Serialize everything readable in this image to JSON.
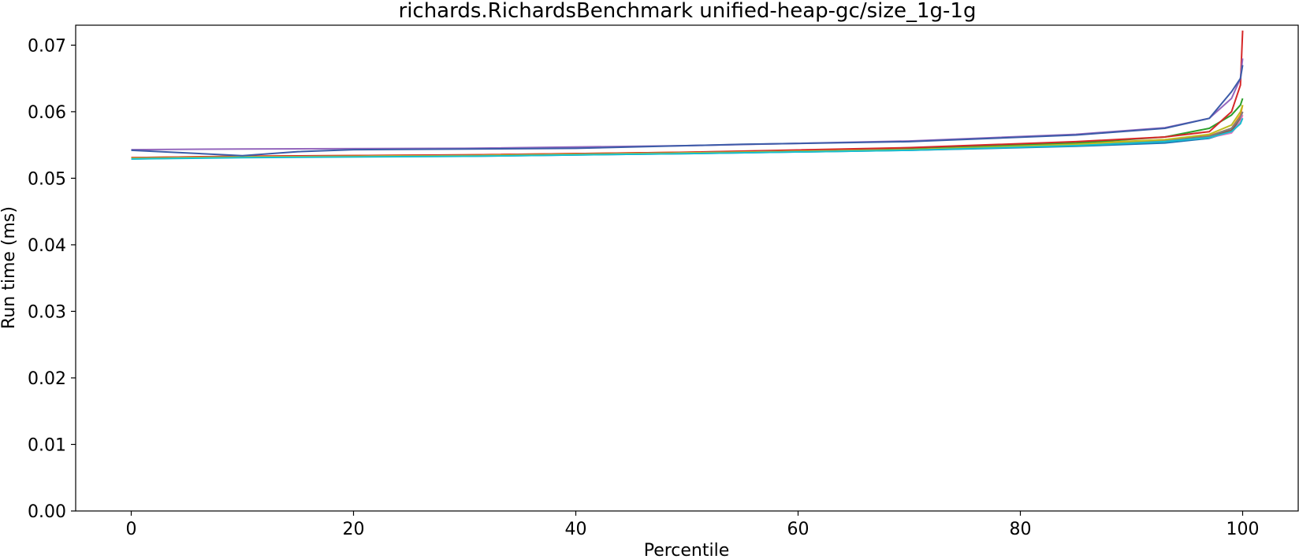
{
  "chart_data": {
    "type": "line",
    "title": "richards.RichardsBenchmark unified-heap-gc/size_1g-1g",
    "xlabel": "Percentile",
    "ylabel": "Run time (ms)",
    "xlim": [
      -5,
      105
    ],
    "ylim": [
      0.0,
      0.073
    ],
    "xticks": [
      0,
      20,
      40,
      60,
      80,
      100
    ],
    "xtick_labels": [
      "0",
      "20",
      "40",
      "60",
      "80",
      "100"
    ],
    "yticks": [
      0.0,
      0.01,
      0.02,
      0.03,
      0.04,
      0.05,
      0.06,
      0.07
    ],
    "ytick_labels": [
      "0.00",
      "0.01",
      "0.02",
      "0.03",
      "0.04",
      "0.05",
      "0.06",
      "0.07"
    ],
    "grid": false,
    "legend": "none",
    "series": [
      {
        "color": "#1f77b4",
        "points": [
          [
            0,
            0.0529
          ],
          [
            10,
            0.0532
          ],
          [
            30,
            0.0533
          ],
          [
            50,
            0.0537
          ],
          [
            70,
            0.0542
          ],
          [
            85,
            0.0548
          ],
          [
            93,
            0.0553
          ],
          [
            97,
            0.056
          ],
          [
            99,
            0.057
          ],
          [
            99.8,
            0.0585
          ],
          [
            100,
            0.059
          ]
        ]
      },
      {
        "color": "#ff7f0e",
        "points": [
          [
            0,
            0.0531
          ],
          [
            10,
            0.0533
          ],
          [
            30,
            0.0535
          ],
          [
            50,
            0.0539
          ],
          [
            70,
            0.0545
          ],
          [
            85,
            0.0552
          ],
          [
            93,
            0.0558
          ],
          [
            97,
            0.0564
          ],
          [
            99,
            0.0575
          ],
          [
            99.8,
            0.0595
          ],
          [
            100,
            0.061
          ]
        ]
      },
      {
        "color": "#2ca02c",
        "points": [
          [
            0,
            0.053
          ],
          [
            10,
            0.0532
          ],
          [
            30,
            0.0534
          ],
          [
            50,
            0.0538
          ],
          [
            70,
            0.0544
          ],
          [
            85,
            0.0553
          ],
          [
            93,
            0.0562
          ],
          [
            97,
            0.0575
          ],
          [
            99,
            0.0595
          ],
          [
            99.8,
            0.061
          ],
          [
            100,
            0.062
          ]
        ]
      },
      {
        "color": "#d62728",
        "points": [
          [
            0,
            0.0531
          ],
          [
            10,
            0.0533
          ],
          [
            30,
            0.0535
          ],
          [
            50,
            0.0539
          ],
          [
            70,
            0.0546
          ],
          [
            85,
            0.0555
          ],
          [
            93,
            0.0562
          ],
          [
            97,
            0.057
          ],
          [
            99,
            0.06
          ],
          [
            99.8,
            0.064
          ],
          [
            100,
            0.0722
          ]
        ]
      },
      {
        "color": "#9467bd",
        "points": [
          [
            0,
            0.0543
          ],
          [
            10,
            0.0544
          ],
          [
            30,
            0.0545
          ],
          [
            50,
            0.0549
          ],
          [
            70,
            0.0556
          ],
          [
            85,
            0.0566
          ],
          [
            93,
            0.0576
          ],
          [
            97,
            0.059
          ],
          [
            99,
            0.062
          ],
          [
            99.8,
            0.065
          ],
          [
            100,
            0.068
          ]
        ]
      },
      {
        "color": "#8c564b",
        "points": [
          [
            0,
            0.053
          ],
          [
            10,
            0.0532
          ],
          [
            30,
            0.0534
          ],
          [
            50,
            0.0538
          ],
          [
            70,
            0.0543
          ],
          [
            85,
            0.0551
          ],
          [
            93,
            0.0557
          ],
          [
            97,
            0.0563
          ],
          [
            99,
            0.0572
          ],
          [
            99.8,
            0.059
          ],
          [
            100,
            0.06
          ]
        ]
      },
      {
        "color": "#e377c2",
        "points": [
          [
            0,
            0.053
          ],
          [
            10,
            0.0532
          ],
          [
            30,
            0.0534
          ],
          [
            50,
            0.0538
          ],
          [
            70,
            0.0543
          ],
          [
            85,
            0.055
          ],
          [
            93,
            0.0556
          ],
          [
            97,
            0.0561
          ],
          [
            99,
            0.0568
          ],
          [
            99.8,
            0.0585
          ],
          [
            100,
            0.0595
          ]
        ]
      },
      {
        "color": "#7f7f7f",
        "points": [
          [
            0,
            0.053
          ],
          [
            10,
            0.0532
          ],
          [
            30,
            0.0534
          ],
          [
            50,
            0.0538
          ],
          [
            70,
            0.0543
          ],
          [
            85,
            0.055
          ],
          [
            93,
            0.0556
          ],
          [
            97,
            0.0563
          ],
          [
            99,
            0.0575
          ],
          [
            99.8,
            0.0592
          ],
          [
            100,
            0.06
          ]
        ]
      },
      {
        "color": "#bcbd22",
        "points": [
          [
            0,
            0.053
          ],
          [
            10,
            0.0532
          ],
          [
            30,
            0.0534
          ],
          [
            50,
            0.0538
          ],
          [
            70,
            0.0543
          ],
          [
            85,
            0.0551
          ],
          [
            93,
            0.0558
          ],
          [
            97,
            0.0566
          ],
          [
            99,
            0.058
          ],
          [
            99.8,
            0.06
          ],
          [
            100,
            0.061
          ]
        ]
      },
      {
        "color": "#17becf",
        "points": [
          [
            0,
            0.0529
          ],
          [
            10,
            0.0531
          ],
          [
            30,
            0.0533
          ],
          [
            50,
            0.0537
          ],
          [
            70,
            0.0542
          ],
          [
            85,
            0.0549
          ],
          [
            93,
            0.0555
          ],
          [
            97,
            0.0561
          ],
          [
            99,
            0.057
          ],
          [
            99.8,
            0.0582
          ],
          [
            100,
            0.059
          ]
        ]
      },
      {
        "color": "#3b5ba8",
        "points": [
          [
            0,
            0.0542
          ],
          [
            10,
            0.0534
          ],
          [
            15,
            0.054
          ],
          [
            20,
            0.0543
          ],
          [
            40,
            0.0545
          ],
          [
            55,
            0.0551
          ],
          [
            70,
            0.0555
          ],
          [
            85,
            0.0565
          ],
          [
            93,
            0.0575
          ],
          [
            97,
            0.059
          ],
          [
            99,
            0.063
          ],
          [
            99.8,
            0.065
          ],
          [
            100,
            0.067
          ]
        ]
      }
    ]
  }
}
